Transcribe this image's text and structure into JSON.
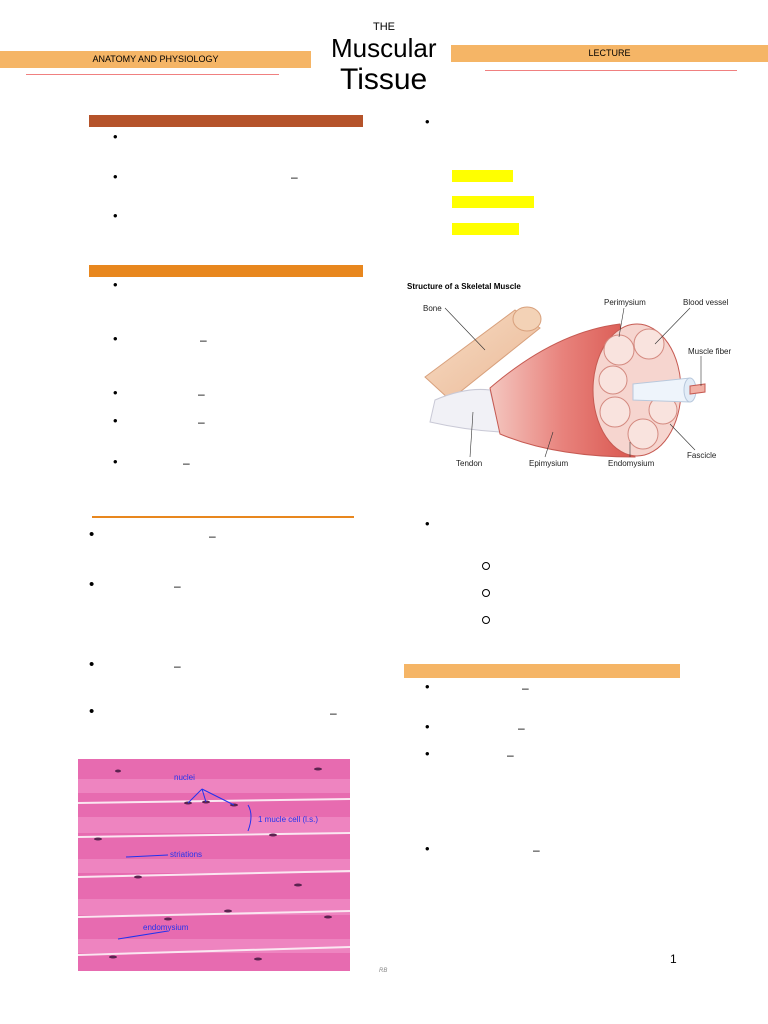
{
  "header": {
    "left_tab": "ANATOMY AND PHYSIOLOGY",
    "right_tab": "LECTURE",
    "title_small": "THE",
    "title_mid": "Muscular",
    "title_big": "Tissue",
    "colors": {
      "tab": "#f5b566",
      "rule": "#f08080"
    }
  },
  "sections": {
    "bar1_color": "#b5532a",
    "bar2_color": "#e8871e",
    "bar3_color": "#f5b566",
    "rule_color": "#e8871e",
    "bullet_glyph": "•",
    "dash_glyph": "–",
    "highlight_color": "#ffff00"
  },
  "figure1": {
    "title": "Structure of a Skeletal Muscle",
    "labels": {
      "bone": "Bone",
      "perimysium": "Perimysium",
      "blood_vessel": "Blood vessel",
      "muscle_fiber": "Muscle fiber",
      "fascicle": "Fascicle",
      "tendon": "Tendon",
      "epimysium": "Epimysium",
      "endomysium": "Endomysium"
    }
  },
  "figure2": {
    "labels": {
      "nuclei": "nuclei",
      "cell": "1 mucle cell (l.s.)",
      "striations": "striations",
      "endomysium": "endomysium"
    }
  },
  "footer": {
    "page_number": "1",
    "initials": "RB"
  }
}
